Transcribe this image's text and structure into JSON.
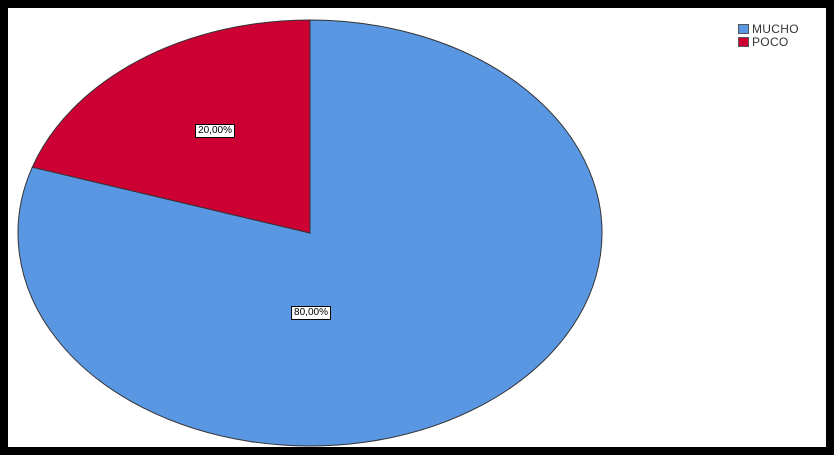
{
  "chart_data": {
    "type": "pie",
    "title": "",
    "slices": [
      {
        "label": "MUCHO",
        "value": 80.0,
        "display": "80,00%",
        "color": "#5a97e3"
      },
      {
        "label": "POCO",
        "value": 20.0,
        "display": "20,00%",
        "color": "#cc0033"
      }
    ],
    "legend": {
      "position": "top-right",
      "items": [
        {
          "label": "MUCHO",
          "color": "#5a97e3"
        },
        {
          "label": "POCO",
          "color": "#cc0033"
        }
      ]
    }
  }
}
